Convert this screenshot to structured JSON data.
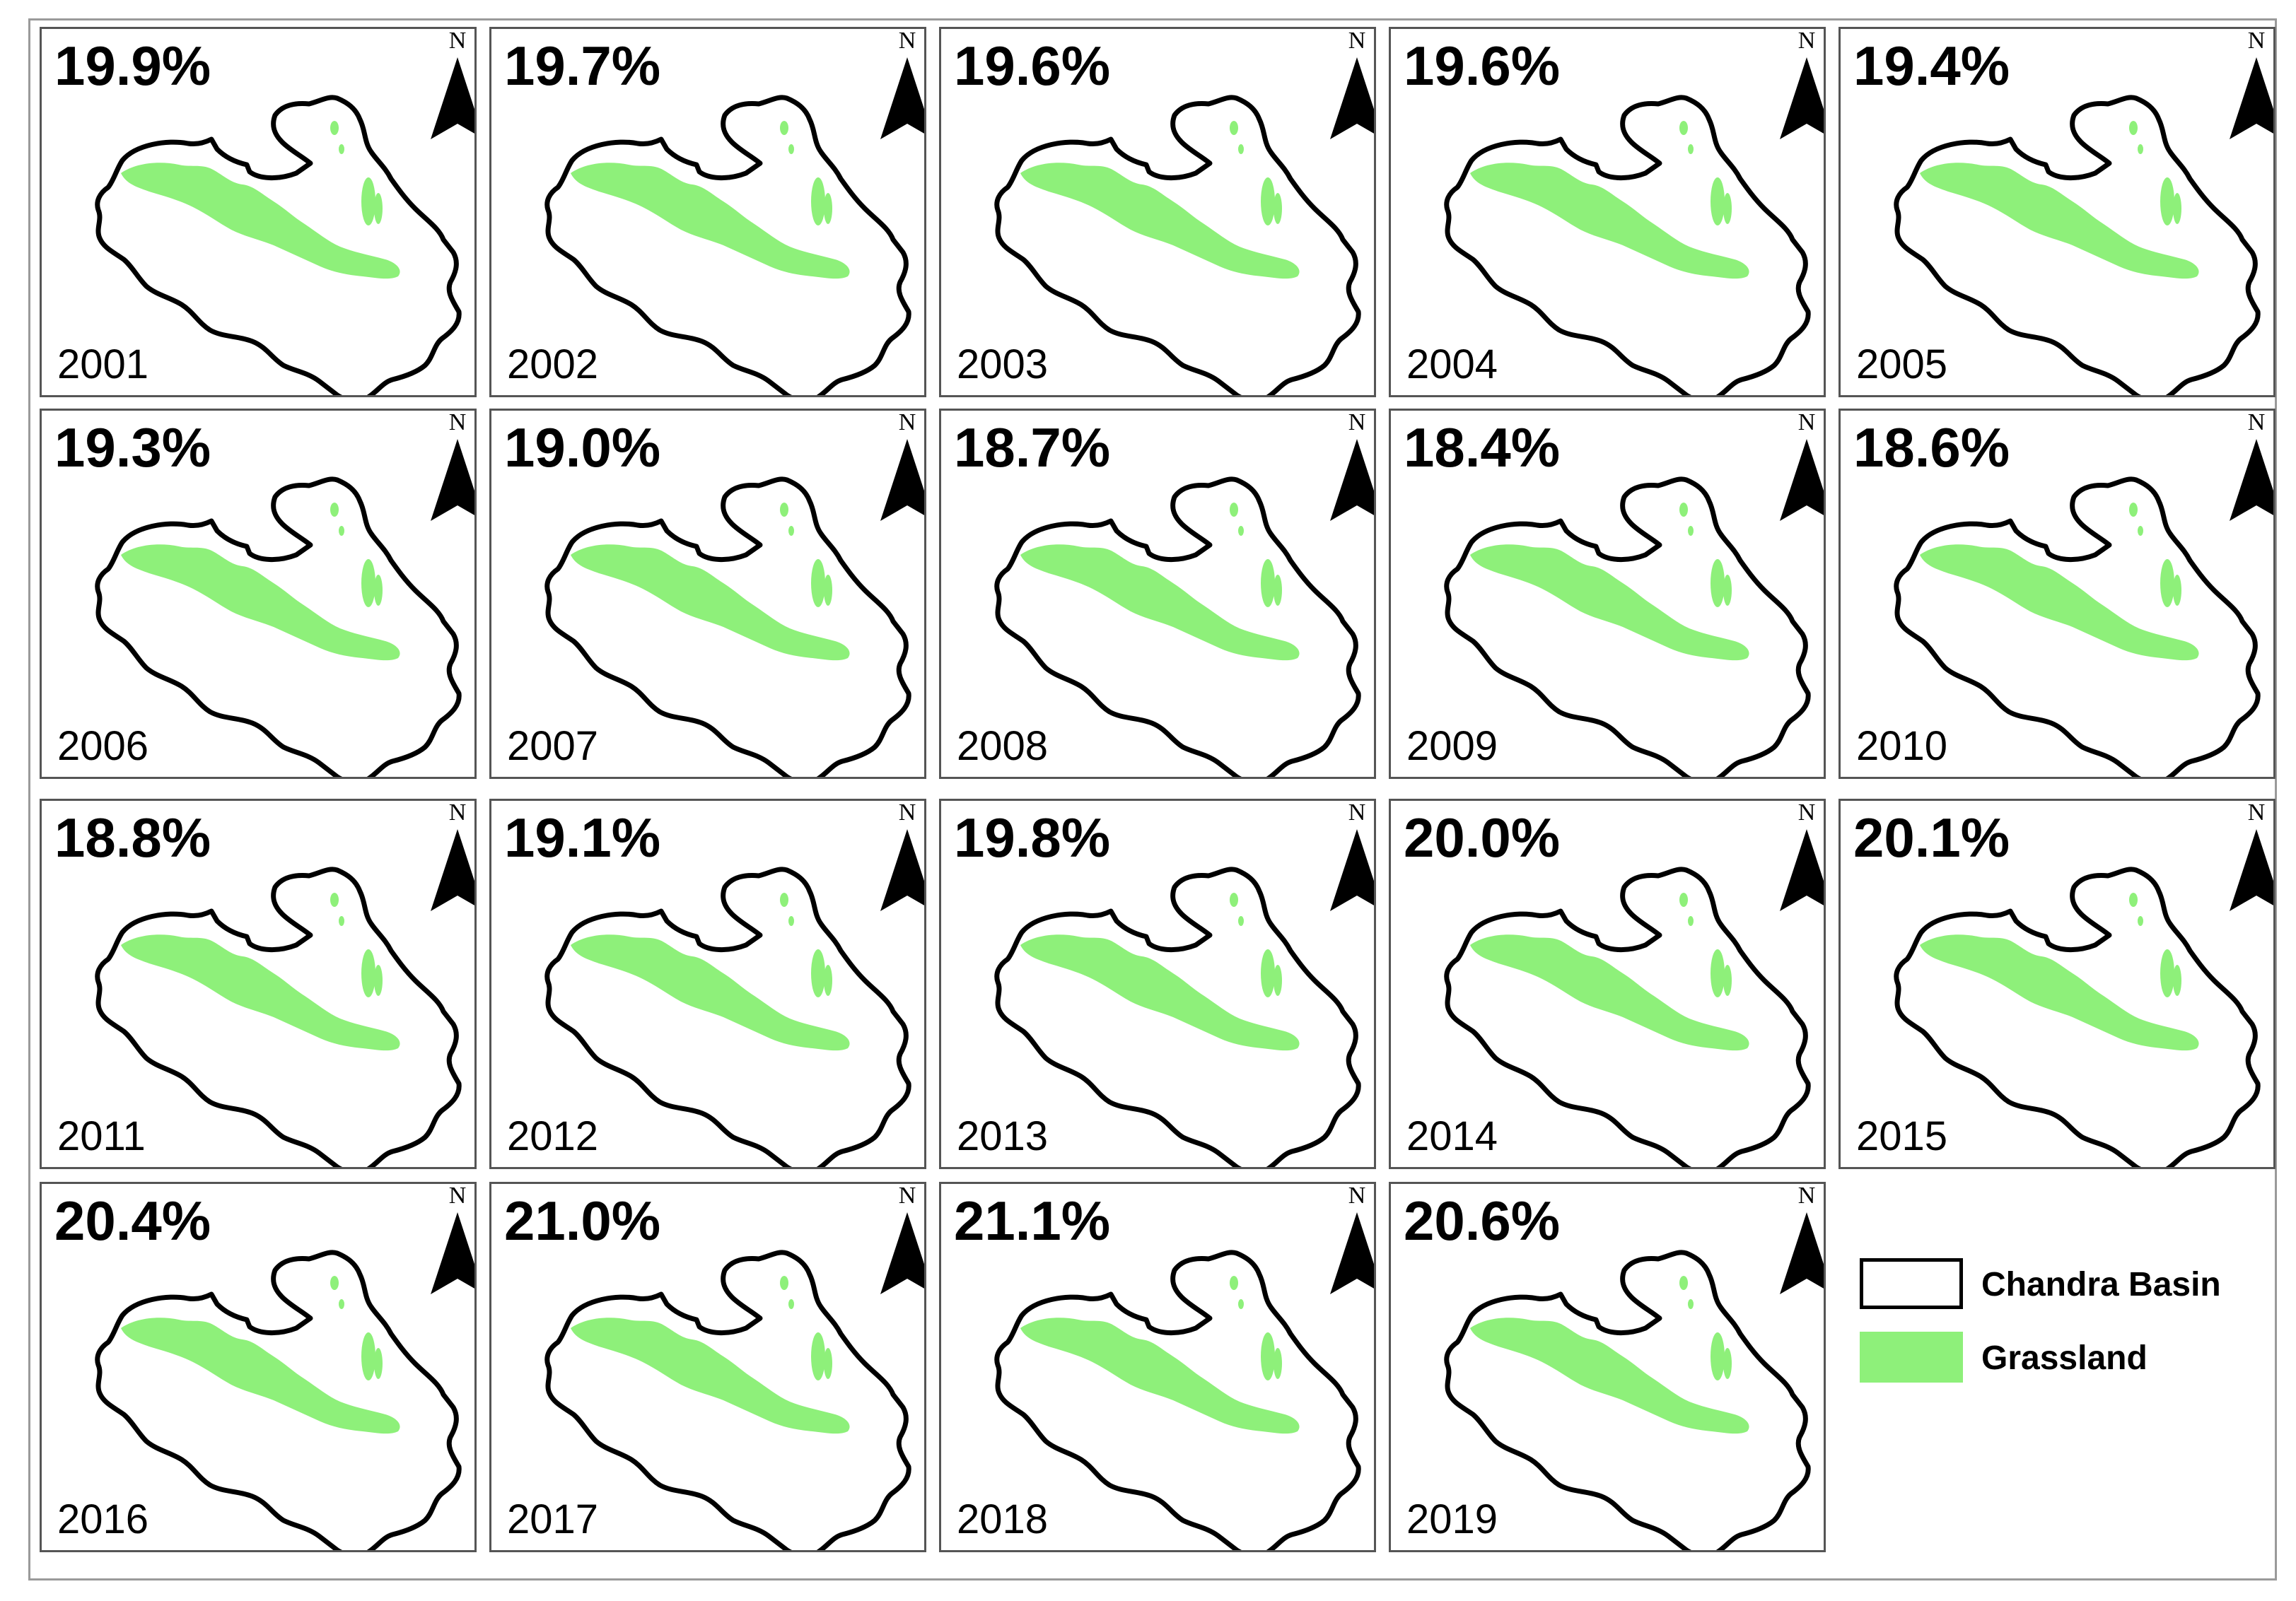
{
  "map": {
    "panels": [
      {
        "year": "2001",
        "grassland_pct": "19.9%"
      },
      {
        "year": "2002",
        "grassland_pct": "19.7%"
      },
      {
        "year": "2003",
        "grassland_pct": "19.6%"
      },
      {
        "year": "2004",
        "grassland_pct": "19.6%"
      },
      {
        "year": "2005",
        "grassland_pct": "19.4%"
      },
      {
        "year": "2006",
        "grassland_pct": "19.3%"
      },
      {
        "year": "2007",
        "grassland_pct": "19.0%"
      },
      {
        "year": "2008",
        "grassland_pct": "18.7%"
      },
      {
        "year": "2009",
        "grassland_pct": "18.4%"
      },
      {
        "year": "2010",
        "grassland_pct": "18.6%"
      },
      {
        "year": "2011",
        "grassland_pct": "18.8%"
      },
      {
        "year": "2012",
        "grassland_pct": "19.1%"
      },
      {
        "year": "2013",
        "grassland_pct": "19.8%"
      },
      {
        "year": "2014",
        "grassland_pct": "20.0%"
      },
      {
        "year": "2015",
        "grassland_pct": "20.1%"
      },
      {
        "year": "2016",
        "grassland_pct": "20.4%"
      },
      {
        "year": "2017",
        "grassland_pct": "21.0%"
      },
      {
        "year": "2018",
        "grassland_pct": "21.1%"
      },
      {
        "year": "2019",
        "grassland_pct": "20.6%"
      }
    ],
    "north_label": "N",
    "legend": [
      {
        "label": "Chandra Basin",
        "fill": "#ffffff",
        "stroke": "#000000"
      },
      {
        "label": "Grassland",
        "fill": "#8ef07a",
        "stroke": "#8ef07a"
      }
    ],
    "colors": {
      "basin_outline": "#000000",
      "grassland": "#8ef07a",
      "panel_border": "#555555"
    }
  }
}
